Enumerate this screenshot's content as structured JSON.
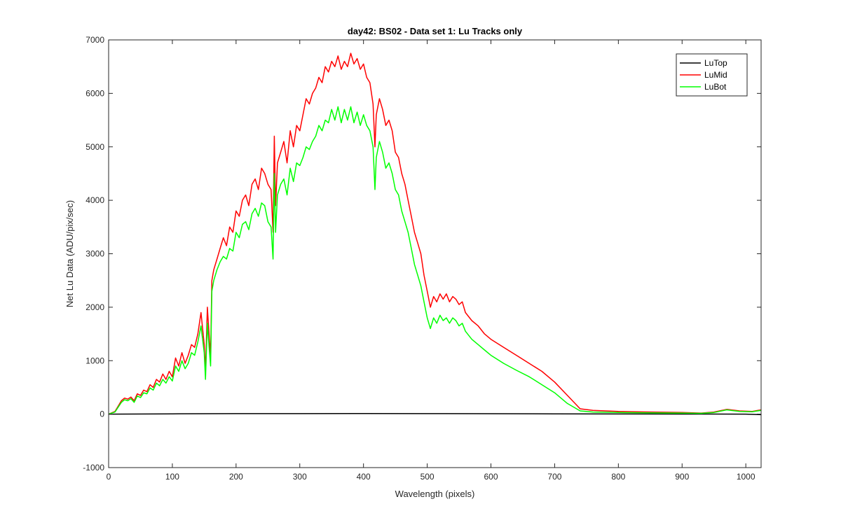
{
  "chart_data": {
    "type": "line",
    "title": "day42: BS02 - Data set 1: Lu Tracks only",
    "xlabel": "Wavelength (pixels)",
    "ylabel": "Net Lu Data (ADU/pix/sec)",
    "xlim": [
      0,
      1024
    ],
    "ylim": [
      -1000,
      7000
    ],
    "xticks": [
      0,
      100,
      200,
      300,
      400,
      500,
      600,
      700,
      800,
      900,
      1000
    ],
    "yticks": [
      -1000,
      0,
      1000,
      2000,
      3000,
      4000,
      5000,
      6000,
      7000
    ],
    "xtick_labels": [
      "0",
      "100",
      "200",
      "300",
      "400",
      "500",
      "600",
      "700",
      "800",
      "900",
      "1000"
    ],
    "ytick_labels": [
      "-1000",
      "0",
      "1000",
      "2000",
      "3000",
      "4000",
      "5000",
      "6000",
      "7000"
    ],
    "grid": false,
    "legend_position": "top-right",
    "series": [
      {
        "name": "LuTop",
        "color": "#000000",
        "x": [
          0,
          100,
          200,
          300,
          400,
          500,
          600,
          700,
          800,
          900,
          1000,
          1024
        ],
        "y": [
          0,
          5,
          10,
          10,
          12,
          10,
          8,
          5,
          3,
          2,
          0,
          -10
        ]
      },
      {
        "name": "LuMid",
        "color": "#ff0000",
        "x": [
          0,
          10,
          15,
          20,
          25,
          30,
          35,
          40,
          45,
          50,
          55,
          60,
          65,
          70,
          75,
          80,
          85,
          90,
          95,
          100,
          105,
          110,
          115,
          120,
          125,
          130,
          135,
          140,
          145,
          150,
          152,
          155,
          158,
          160,
          162,
          165,
          170,
          175,
          180,
          185,
          190,
          195,
          200,
          205,
          210,
          215,
          220,
          225,
          230,
          235,
          240,
          245,
          250,
          255,
          258,
          260,
          262,
          265,
          270,
          275,
          280,
          285,
          290,
          295,
          300,
          305,
          310,
          315,
          320,
          325,
          330,
          335,
          340,
          345,
          350,
          355,
          360,
          365,
          370,
          375,
          380,
          385,
          390,
          395,
          400,
          405,
          410,
          415,
          418,
          420,
          425,
          430,
          435,
          440,
          445,
          450,
          455,
          460,
          465,
          470,
          475,
          480,
          485,
          490,
          495,
          500,
          505,
          510,
          515,
          520,
          525,
          530,
          535,
          540,
          545,
          550,
          555,
          560,
          570,
          580,
          590,
          600,
          620,
          640,
          660,
          680,
          700,
          720,
          740,
          760,
          800,
          850,
          900,
          930,
          950,
          970,
          990,
          1010,
          1024
        ],
        "y": [
          0,
          50,
          150,
          250,
          300,
          280,
          320,
          250,
          380,
          350,
          450,
          420,
          550,
          500,
          650,
          600,
          750,
          650,
          800,
          700,
          1050,
          900,
          1150,
          950,
          1100,
          1300,
          1250,
          1500,
          1900,
          1300,
          800,
          2000,
          1400,
          1100,
          2500,
          2700,
          2900,
          3100,
          3300,
          3150,
          3500,
          3400,
          3800,
          3700,
          4000,
          4100,
          3900,
          4300,
          4400,
          4200,
          4600,
          4500,
          4300,
          4200,
          3400,
          5200,
          3900,
          4700,
          4900,
          5100,
          4700,
          5300,
          5000,
          5400,
          5300,
          5600,
          5900,
          5800,
          6000,
          6100,
          6300,
          6200,
          6500,
          6400,
          6600,
          6500,
          6700,
          6450,
          6600,
          6500,
          6750,
          6550,
          6650,
          6450,
          6550,
          6300,
          6200,
          5800,
          5000,
          5600,
          5900,
          5700,
          5400,
          5500,
          5300,
          4900,
          4800,
          4500,
          4300,
          4000,
          3700,
          3400,
          3200,
          3000,
          2600,
          2300,
          2000,
          2200,
          2100,
          2250,
          2150,
          2250,
          2100,
          2200,
          2150,
          2050,
          2100,
          1900,
          1750,
          1650,
          1500,
          1400,
          1250,
          1100,
          950,
          800,
          600,
          350,
          100,
          70,
          50,
          40,
          30,
          20,
          40,
          90,
          60,
          50,
          80
        ]
      },
      {
        "name": "LuBot",
        "color": "#00ff00",
        "x": [
          0,
          10,
          15,
          20,
          25,
          30,
          35,
          40,
          45,
          50,
          55,
          60,
          65,
          70,
          75,
          80,
          85,
          90,
          95,
          100,
          105,
          110,
          115,
          120,
          125,
          130,
          135,
          140,
          145,
          150,
          152,
          155,
          158,
          160,
          162,
          165,
          170,
          175,
          180,
          185,
          190,
          195,
          200,
          205,
          210,
          215,
          220,
          225,
          230,
          235,
          240,
          245,
          250,
          255,
          258,
          260,
          262,
          265,
          270,
          275,
          280,
          285,
          290,
          295,
          300,
          305,
          310,
          315,
          320,
          325,
          330,
          335,
          340,
          345,
          350,
          355,
          360,
          365,
          370,
          375,
          380,
          385,
          390,
          395,
          400,
          405,
          410,
          415,
          418,
          420,
          425,
          430,
          435,
          440,
          445,
          450,
          455,
          460,
          465,
          470,
          475,
          480,
          485,
          490,
          495,
          500,
          505,
          510,
          515,
          520,
          525,
          530,
          535,
          540,
          545,
          550,
          555,
          560,
          570,
          580,
          590,
          600,
          620,
          640,
          660,
          680,
          700,
          720,
          740,
          760,
          800,
          850,
          900,
          930,
          950,
          970,
          990,
          1010,
          1024
        ],
        "y": [
          0,
          40,
          130,
          220,
          270,
          250,
          290,
          220,
          340,
          310,
          400,
          380,
          490,
          450,
          580,
          530,
          650,
          580,
          700,
          620,
          900,
          800,
          1000,
          850,
          950,
          1150,
          1100,
          1350,
          1650,
          1150,
          650,
          1700,
          1200,
          900,
          2300,
          2500,
          2700,
          2850,
          2950,
          2900,
          3100,
          3050,
          3400,
          3300,
          3550,
          3600,
          3450,
          3750,
          3850,
          3700,
          3950,
          3900,
          3600,
          3500,
          2900,
          4500,
          3400,
          4100,
          4300,
          4400,
          4100,
          4600,
          4350,
          4700,
          4650,
          4800,
          5000,
          4950,
          5100,
          5200,
          5400,
          5300,
          5500,
          5450,
          5700,
          5500,
          5750,
          5450,
          5700,
          5500,
          5750,
          5450,
          5650,
          5400,
          5600,
          5400,
          5300,
          5000,
          4200,
          4800,
          5100,
          4900,
          4600,
          4700,
          4500,
          4200,
          4100,
          3800,
          3600,
          3400,
          3100,
          2800,
          2600,
          2400,
          2100,
          1800,
          1600,
          1800,
          1700,
          1850,
          1750,
          1800,
          1700,
          1800,
          1750,
          1650,
          1700,
          1550,
          1400,
          1300,
          1200,
          1100,
          950,
          820,
          700,
          550,
          400,
          200,
          60,
          40,
          30,
          25,
          20,
          15,
          30,
          80,
          50,
          45,
          70
        ]
      }
    ]
  }
}
